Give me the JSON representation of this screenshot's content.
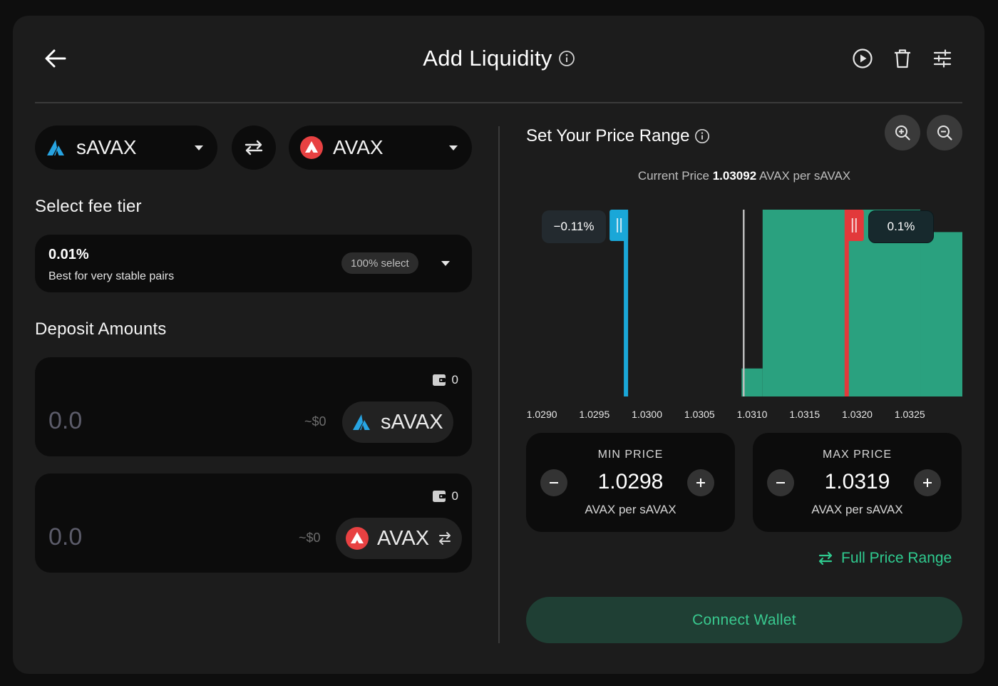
{
  "header": {
    "title": "Add Liquidity"
  },
  "tokens": {
    "token_a": {
      "symbol": "sAVAX"
    },
    "token_b": {
      "symbol": "AVAX"
    }
  },
  "fee": {
    "section_label": "Select fee tier",
    "value": "0.01%",
    "description": "Best for very stable pairs",
    "badge": "100% select"
  },
  "deposit": {
    "section_label": "Deposit Amounts",
    "rows": [
      {
        "balance": "0",
        "placeholder": "0.0",
        "usd": "~$0",
        "symbol": "sAVAX"
      },
      {
        "balance": "0",
        "placeholder": "0.0",
        "usd": "~$0",
        "symbol": "AVAX"
      }
    ]
  },
  "range": {
    "title": "Set Your Price Range",
    "current_price_label": "Current Price",
    "current_price_value": "1.03092",
    "current_price_unit": "AVAX per sAVAX",
    "min_pct": "−0.11%",
    "max_pct": "0.1%",
    "ticks": [
      "1.0290",
      "1.0295",
      "1.0300",
      "1.0305",
      "1.0310",
      "1.0315",
      "1.0320",
      "1.0325"
    ],
    "min": {
      "label": "MIN PRICE",
      "value": "1.0298",
      "unit": "AVAX per sAVAX"
    },
    "max": {
      "label": "MAX PRICE",
      "value": "1.0319",
      "unit": "AVAX per sAVAX"
    },
    "full_range_label": "Full Price Range",
    "connect_label": "Connect Wallet"
  },
  "chart_data": {
    "type": "area",
    "x_range": [
      1.02885,
      1.033
    ],
    "current_price": 1.03092,
    "min_price": 1.0298,
    "max_price": 1.0319,
    "liquidity_bins": [
      {
        "from": 1.0309,
        "to": 1.0311,
        "level": 0.15
      },
      {
        "from": 1.0311,
        "to": 1.0326,
        "level": 1.0
      },
      {
        "from": 1.0326,
        "to": 1.033,
        "level": 0.88
      }
    ],
    "colors": {
      "liquidity": "#2aa17f",
      "min_handle": "#1aa7d8",
      "max_handle": "#e2393b",
      "current": "#bdbdbd"
    }
  }
}
